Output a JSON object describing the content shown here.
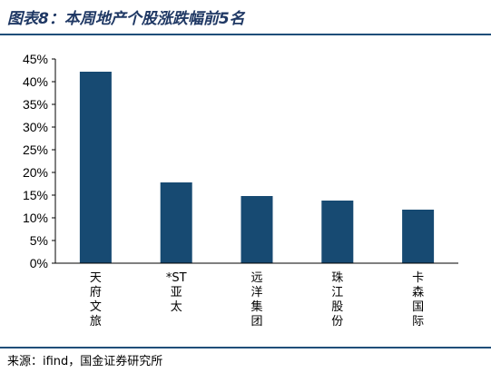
{
  "title": "图表8：本周地产个股涨跌幅前5名",
  "source": "来源：ifind，国金证券研究所",
  "colors": {
    "bar": "#174a72",
    "title": "#1f3864",
    "rule": "#1f4e79"
  },
  "chart_data": {
    "type": "bar",
    "title": "",
    "xlabel": "",
    "ylabel": "",
    "categories": [
      "天府文旅",
      "*ST亚太",
      "远洋集团",
      "珠江股份",
      "卡森国际"
    ],
    "values": [
      42.2,
      17.8,
      14.8,
      13.8,
      11.8
    ],
    "ylim": [
      0,
      45
    ],
    "yticks": [
      0,
      5,
      10,
      15,
      20,
      25,
      30,
      35,
      40,
      45
    ],
    "ytick_suffix": "%",
    "grid": false,
    "legend": "none"
  }
}
